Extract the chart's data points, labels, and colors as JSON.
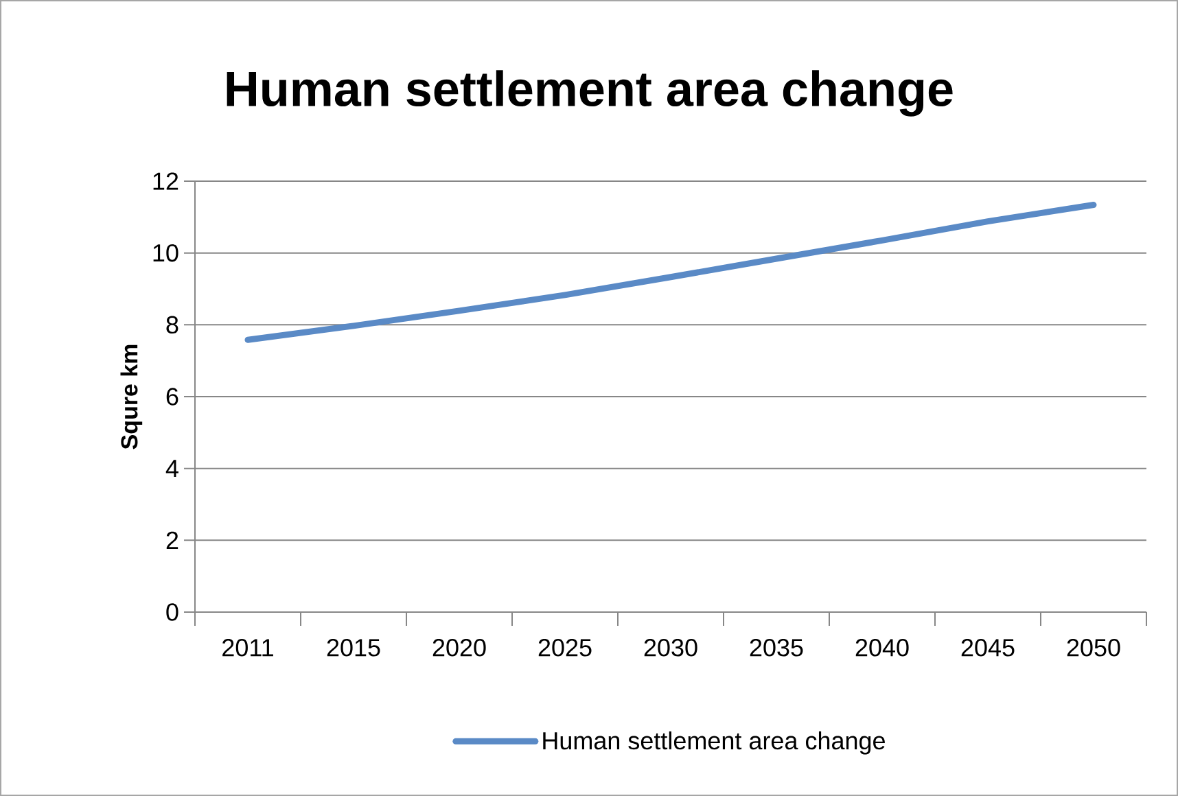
{
  "chart_data": {
    "type": "line",
    "title": "Human settlement area change",
    "ylabel": "Squre km",
    "categories": [
      "2011",
      "2015",
      "2020",
      "2025",
      "2030",
      "2035",
      "2040",
      "2045",
      "2050"
    ],
    "series": [
      {
        "name": "Human settlement area change",
        "color": "#5a8ac6",
        "values": [
          7.58,
          7.97,
          8.39,
          8.83,
          9.33,
          9.84,
          10.35,
          10.88,
          11.34
        ]
      }
    ],
    "ylim": [
      0,
      12
    ],
    "yticks": [
      0,
      2,
      4,
      6,
      8,
      10,
      12
    ],
    "grid": "y",
    "legend": "bottom"
  }
}
